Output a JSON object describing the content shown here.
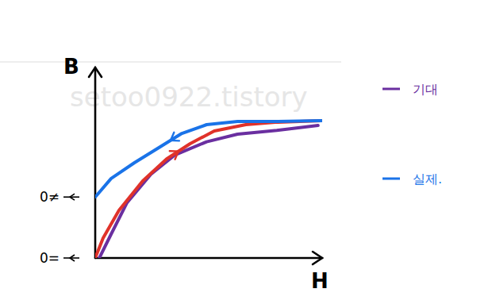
{
  "chart_data": {
    "type": "line",
    "x_label": "H",
    "y_label": "B",
    "xlim": [
      0,
      110
    ],
    "ylim": [
      0,
      100
    ],
    "xticks": [],
    "yticks": [],
    "tick_labels": false,
    "grid": false,
    "legend": "right",
    "watermark": "setoo0922.tistory",
    "annotations": [
      {
        "text": "0≠",
        "y": 32
      },
      {
        "text": "0=",
        "y": 0
      }
    ],
    "series": [
      {
        "name": "기대",
        "color": "#6a2fa0",
        "x": [
          2,
          7.7,
          15.4,
          27,
          38.5,
          54,
          69,
          88,
          108
        ],
        "values": [
          0,
          12.5,
          29,
          44,
          54,
          61,
          65,
          67,
          69.6
        ]
      },
      {
        "color": "#e0322a",
        "marker": "arrow",
        "x": [
          0,
          3.8,
          11.5,
          23,
          34.6,
          46,
          57.7,
          73,
          88.5,
          109.6
        ],
        "values": [
          0,
          10.4,
          25,
          40.4,
          52,
          60,
          66.7,
          70,
          71.3,
          72.1
        ]
      },
      {
        "name": "실제.",
        "color": "#1a73e8",
        "marker": "arrow",
        "x": [
          109.6,
          88.5,
          69,
          54,
          42,
          31,
          19,
          7.7,
          0
        ],
        "values": [
          72.1,
          71.7,
          71.7,
          70,
          65.4,
          58,
          50,
          41.7,
          32
        ]
      }
    ]
  }
}
